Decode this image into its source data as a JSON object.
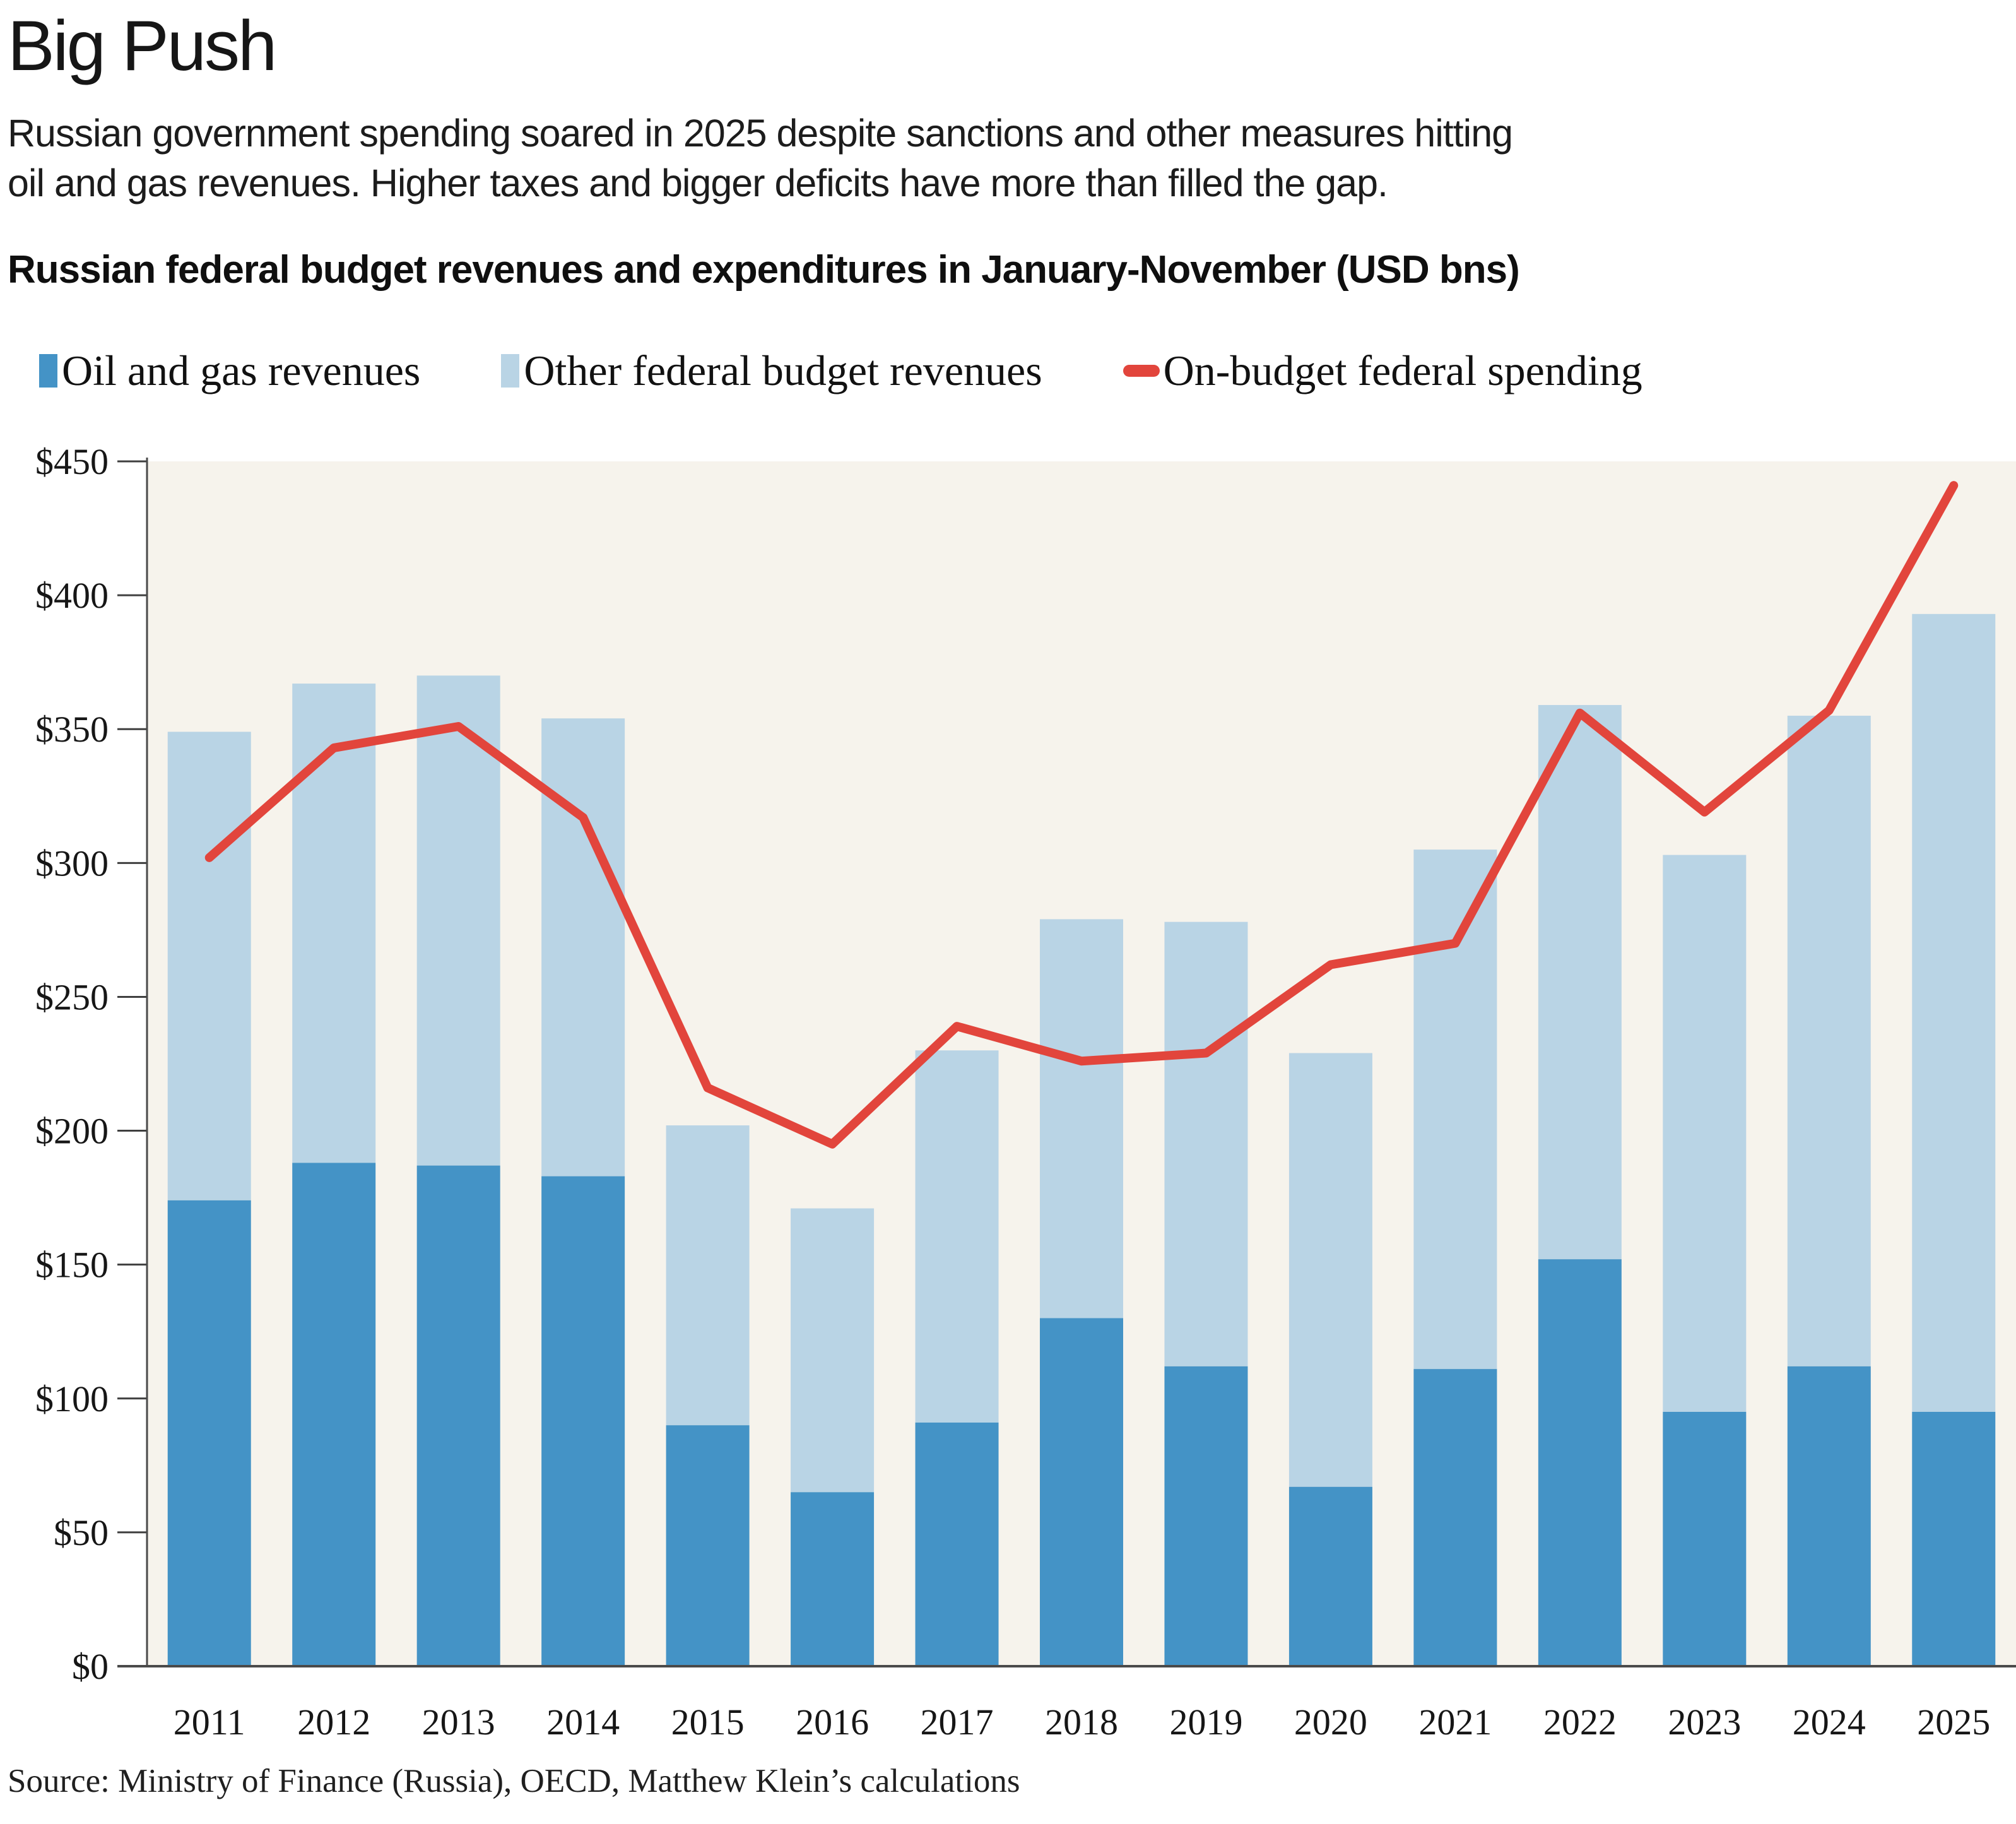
{
  "header": {
    "title": "Big Push",
    "subtitle_line1": "Russian government spending soared in 2025 despite sanctions and other measures hitting",
    "subtitle_line2": "oil and gas revenues. Higher taxes and bigger deficits have more than filled the gap.",
    "chart_title": "Russian federal budget revenues and expenditures in January-November (USD bns)"
  },
  "legend": {
    "items": [
      {
        "label": "Oil and gas revenues",
        "color": "#4493c6",
        "swatch": "bar"
      },
      {
        "label": "Other federal budget revenues",
        "color": "#b9d4e5",
        "swatch": "bar"
      },
      {
        "label": "On-budget federal spending",
        "color": "#e2453c",
        "swatch": "line"
      }
    ]
  },
  "source": "Source: Ministry of Finance (Russia), OECD, Matthew Klein’s calculations",
  "colors": {
    "oil_bar": "#4493c6",
    "other_bar": "#b9d4e5",
    "spending_line": "#e2453c",
    "plot_background": "#f6f3ec",
    "axis": "#4a4a4a",
    "tick": "#3f3f3f",
    "text": "#161616"
  },
  "chart_data": {
    "type": "bar",
    "subtype": "stacked-bars-with-line-overlay",
    "title": "Russian federal budget revenues and expenditures in January-November (USD bns)",
    "categories": [
      "2011",
      "2012",
      "2013",
      "2014",
      "2015",
      "2016",
      "2017",
      "2018",
      "2019",
      "2020",
      "2021",
      "2022",
      "2023",
      "2024",
      "2025"
    ],
    "series": [
      {
        "name": "Oil and gas revenues",
        "render": "bar-stack",
        "color": "#4493c6",
        "values": [
          174,
          188,
          187,
          183,
          90,
          65,
          91,
          130,
          112,
          67,
          111,
          152,
          95,
          112,
          95
        ]
      },
      {
        "name": "Other federal budget revenues",
        "render": "bar-stack",
        "color": "#b9d4e5",
        "values": [
          175,
          179,
          183,
          171,
          112,
          106,
          139,
          149,
          166,
          162,
          194,
          207,
          208,
          243,
          298
        ]
      },
      {
        "name": "On-budget federal spending",
        "render": "line",
        "color": "#e2453c",
        "values": [
          302,
          343,
          351,
          317,
          216,
          195,
          239,
          226,
          229,
          262,
          270,
          356,
          319,
          357,
          441
        ]
      }
    ],
    "stack_totals": [
      349,
      367,
      370,
      354,
      202,
      171,
      230,
      279,
      278,
      229,
      305,
      359,
      303,
      355,
      393
    ],
    "xlabel": "",
    "ylabel": "",
    "ylim": [
      0,
      450
    ],
    "ytick_interval": 50,
    "ytick_prefix": "$",
    "ytick_labels": [
      "$0",
      "$50",
      "$100",
      "$150",
      "$200",
      "$250",
      "$300",
      "$350",
      "$400",
      "$450"
    ],
    "grid": false,
    "legend_position": "top"
  }
}
